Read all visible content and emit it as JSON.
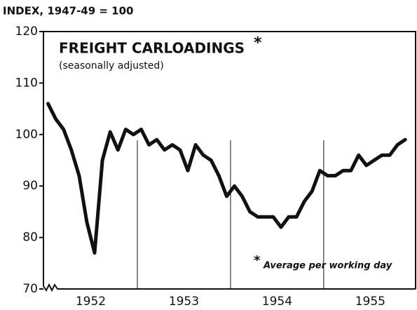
{
  "chart_data": {
    "type": "line",
    "title": "FREIGHT CARLOADINGS",
    "title_mark": "*",
    "subtitle": "(seasonally adjusted)",
    "y_label": "INDEX, 1947-49 = 100",
    "annotation_mark": "*",
    "annotation": "Average per working day",
    "year_labels": [
      "1952",
      "1953",
      "1954",
      "1955"
    ],
    "categories": [
      null,
      null,
      null,
      null,
      null,
      null,
      null,
      null,
      null,
      null,
      null,
      null,
      null,
      null,
      null,
      null,
      null,
      null,
      null,
      null,
      null,
      null,
      null,
      null,
      null,
      null,
      null,
      null,
      null,
      null,
      null,
      null,
      null,
      null,
      null,
      null,
      null,
      null,
      null,
      null,
      null,
      null,
      null,
      null,
      null,
      null,
      null
    ],
    "series": [
      {
        "name": "Freight carloadings",
        "color": "#111111",
        "values": [
          106,
          103,
          101,
          97,
          92,
          83,
          77,
          95,
          100.5,
          97,
          101,
          100,
          101,
          98,
          99,
          97,
          98,
          97,
          93,
          98,
          96,
          95,
          92,
          88,
          90,
          88,
          85,
          84,
          84,
          84,
          82,
          84,
          84,
          87,
          89,
          93,
          92,
          92,
          93,
          93,
          96,
          94,
          95,
          96,
          96,
          98,
          99
        ]
      }
    ],
    "ylim": [
      70,
      120
    ],
    "yticks": [
      70,
      80,
      90,
      100,
      110,
      120
    ]
  }
}
